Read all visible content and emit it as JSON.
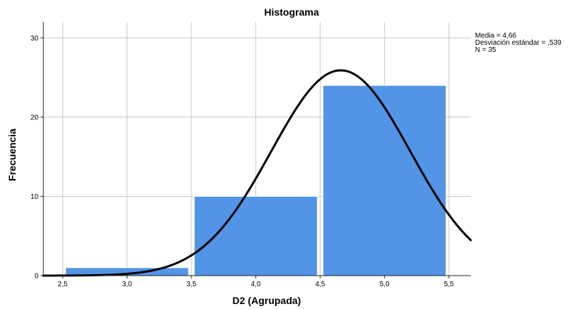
{
  "chart_data": {
    "type": "bar",
    "title": "Histograma",
    "xlabel": "D2 (Agrupada)",
    "ylabel": "Frecuencia",
    "xlim": [
      2.35,
      5.67
    ],
    "ylim": [
      0,
      32
    ],
    "x_ticks": [
      2.5,
      3.0,
      3.5,
      4.0,
      4.5,
      5.0,
      5.5
    ],
    "x_tick_labels": [
      "2,5",
      "3,0",
      "3,5",
      "4,0",
      "4,5",
      "5,0",
      "5,5"
    ],
    "y_ticks": [
      0,
      10,
      20,
      30
    ],
    "y_tick_labels": [
      "0",
      "10",
      "20",
      "30"
    ],
    "grid": true,
    "bins": [
      {
        "x0": 2.5,
        "x1": 3.5,
        "count": 1
      },
      {
        "x0": 3.5,
        "x1": 4.5,
        "count": 10
      },
      {
        "x0": 4.5,
        "x1": 5.5,
        "count": 24
      }
    ],
    "bar_color": "#5294e6",
    "curve": {
      "type": "normal",
      "mean": 4.66,
      "sd": 0.539,
      "n": 35,
      "color": "#000000"
    },
    "stats_text": [
      "Media = 4,66",
      "Desviación estándar = ,539",
      "N = 35"
    ],
    "stats_position": "top-right"
  }
}
